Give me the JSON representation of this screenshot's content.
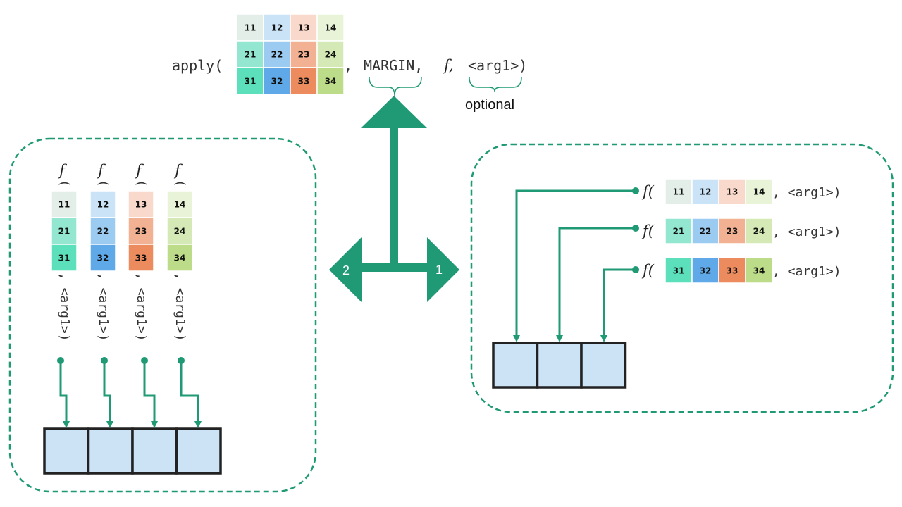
{
  "colors": {
    "accent": "#1f9a74",
    "result_cell": "#cce3f6",
    "cells": {
      "11": "#e3eee9",
      "12": "#cbe3f6",
      "13": "#f9d9cb",
      "14": "#e8f3d8",
      "21": "#93e6cf",
      "22": "#9ccbf1",
      "23": "#f3b193",
      "24": "#d4e9b5",
      "31": "#5ce0bb",
      "32": "#5fa9e8",
      "33": "#ec8c5e",
      "34": "#bddc8a"
    }
  },
  "matrix": [
    [
      "11",
      "12",
      "13",
      "14"
    ],
    [
      "21",
      "22",
      "23",
      "24"
    ],
    [
      "31",
      "32",
      "33",
      "34"
    ]
  ],
  "top": {
    "apply_label": "apply(",
    "comma": ",",
    "margin_label": "MARGIN,",
    "f_label": "f,",
    "arg_label": "<arg1>)",
    "optional_label": "optional"
  },
  "arrows": {
    "left_label": "2",
    "right_label": "1"
  },
  "left_panel": {
    "f_label": "f",
    "paren_label": "(",
    "arg_label": ", <arg1>)",
    "result_cells": 4
  },
  "right_panel": {
    "f_label": "f(",
    "arg_label": ", <arg1>)",
    "result_cells": 3
  }
}
